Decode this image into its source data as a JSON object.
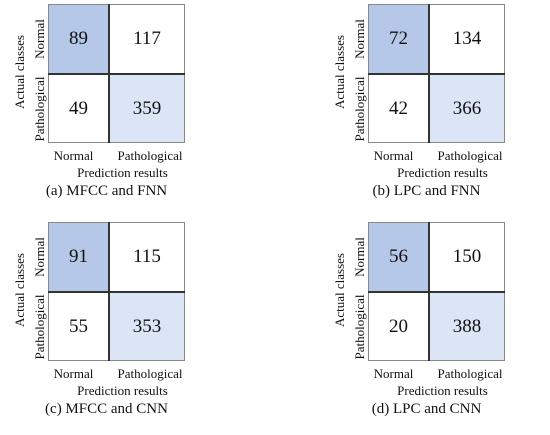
{
  "chart_data": [
    {
      "type": "heatmap",
      "caption": "(a) MFCC and FNN",
      "xlabel": "Prediction results",
      "ylabel": "Actual classes",
      "x_categories": [
        "Normal",
        "Pathological"
      ],
      "y_categories": [
        "Normal",
        "Pathological"
      ],
      "values": [
        [
          89,
          117
        ],
        [
          49,
          359
        ]
      ]
    },
    {
      "type": "heatmap",
      "caption": "(b) LPC and FNN",
      "xlabel": "Prediction results",
      "ylabel": "Actual classes",
      "x_categories": [
        "Normal",
        "Pathological"
      ],
      "y_categories": [
        "Normal",
        "Pathological"
      ],
      "values": [
        [
          72,
          134
        ],
        [
          42,
          366
        ]
      ]
    },
    {
      "type": "heatmap",
      "caption": "(c) MFCC and CNN",
      "xlabel": "Prediction results",
      "ylabel": "Actual classes",
      "x_categories": [
        "Normal",
        "Pathological"
      ],
      "y_categories": [
        "Normal",
        "Pathological"
      ],
      "values": [
        [
          91,
          115
        ],
        [
          55,
          353
        ]
      ]
    },
    {
      "type": "heatmap",
      "caption": "(d) LPC and CNN",
      "xlabel": "Prediction results",
      "ylabel": "Actual classes",
      "x_categories": [
        "Normal",
        "Pathological"
      ],
      "y_categories": [
        "Normal",
        "Pathological"
      ],
      "values": [
        [
          56,
          150
        ],
        [
          20,
          388
        ]
      ]
    }
  ],
  "colors": {
    "true_normal_cell": "#b6c8e8",
    "true_pathological_cell": "#dbe5f5",
    "off_diagonal_cell": "#ffffff"
  }
}
